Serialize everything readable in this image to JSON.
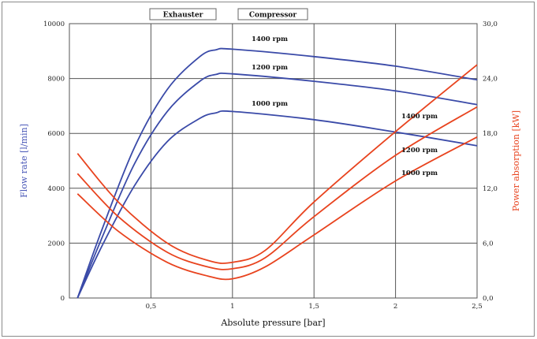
{
  "chart_data": {
    "type": "line",
    "xlabel": "Absolute pressure [bar]",
    "ylabel_left": "Flow rate [l/min]",
    "ylabel_right": "Power absorption [kW]",
    "xlim": [
      0,
      2.5
    ],
    "ylim_left": [
      0,
      10000
    ],
    "ylim_right": [
      0,
      30
    ],
    "x_ticks": [
      "0,5",
      "1",
      "1,5",
      "2",
      "2,5"
    ],
    "y_left_ticks": [
      "0",
      "2000",
      "4000",
      "6000",
      "8000",
      "10000"
    ],
    "y_right_ticks": [
      "0,0",
      "6,0",
      "12,0",
      "18,0",
      "24,0",
      "30,0"
    ],
    "grid": true,
    "mode_labels": [
      "Exhauster",
      "Compressor"
    ],
    "colors": {
      "flow": "#3a4aa8",
      "power": "#e8431e",
      "grid": "#555555"
    },
    "flow_series": [
      {
        "name": "1400 rpm",
        "points": [
          [
            0.05,
            0
          ],
          [
            0.2,
            2500
          ],
          [
            0.4,
            5500
          ],
          [
            0.6,
            7600
          ],
          [
            0.8,
            8800
          ],
          [
            0.9,
            9050
          ],
          [
            1.0,
            9070
          ],
          [
            1.5,
            8800
          ],
          [
            2.0,
            8450
          ],
          [
            2.5,
            7950
          ]
        ]
      },
      {
        "name": "1200 rpm",
        "points": [
          [
            0.05,
            0
          ],
          [
            0.2,
            2200
          ],
          [
            0.4,
            4900
          ],
          [
            0.6,
            6800
          ],
          [
            0.8,
            7900
          ],
          [
            0.9,
            8150
          ],
          [
            1.0,
            8170
          ],
          [
            1.5,
            7900
          ],
          [
            2.0,
            7550
          ],
          [
            2.5,
            7050
          ]
        ]
      },
      {
        "name": "1000 rpm",
        "points": [
          [
            0.05,
            0
          ],
          [
            0.2,
            1900
          ],
          [
            0.4,
            4100
          ],
          [
            0.6,
            5700
          ],
          [
            0.8,
            6550
          ],
          [
            0.9,
            6750
          ],
          [
            1.0,
            6800
          ],
          [
            1.5,
            6500
          ],
          [
            2.0,
            6050
          ],
          [
            2.5,
            5550
          ]
        ]
      }
    ],
    "power_series": [
      {
        "name": "1400 rpm",
        "points": [
          [
            0.05,
            15.8
          ],
          [
            0.3,
            10.5
          ],
          [
            0.6,
            6.0
          ],
          [
            0.85,
            4.1
          ],
          [
            1.0,
            3.9
          ],
          [
            1.2,
            5.2
          ],
          [
            1.5,
            10.5
          ],
          [
            2.0,
            18.2
          ],
          [
            2.5,
            25.5
          ]
        ]
      },
      {
        "name": "1200 rpm",
        "points": [
          [
            0.05,
            13.6
          ],
          [
            0.3,
            8.9
          ],
          [
            0.6,
            5.0
          ],
          [
            0.85,
            3.4
          ],
          [
            1.0,
            3.2
          ],
          [
            1.2,
            4.4
          ],
          [
            1.5,
            8.9
          ],
          [
            2.0,
            15.6
          ],
          [
            2.5,
            20.9
          ]
        ]
      },
      {
        "name": "1000 rpm",
        "points": [
          [
            0.05,
            11.4
          ],
          [
            0.3,
            7.3
          ],
          [
            0.6,
            3.9
          ],
          [
            0.85,
            2.4
          ],
          [
            1.0,
            2.1
          ],
          [
            1.2,
            3.4
          ],
          [
            1.5,
            6.9
          ],
          [
            2.0,
            12.8
          ],
          [
            2.5,
            17.6
          ]
        ]
      }
    ],
    "labels": {
      "flow": [
        "1400 rpm",
        "1200 rpm",
        "1000 rpm"
      ],
      "power": [
        "1400 rpm",
        "1200 rpm",
        "1000 rpm"
      ]
    }
  }
}
